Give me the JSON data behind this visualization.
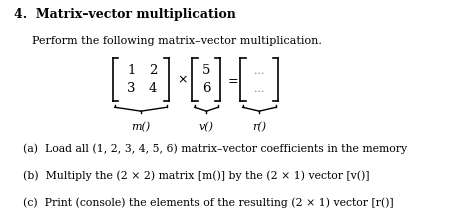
{
  "title": "4.  Matrix–vector multiplication",
  "subtitle": "Perform the following matrix–vector multiplication.",
  "matrix_label": "m()",
  "vec_label": "v()",
  "result_label": "r()",
  "item_a": "(a)  Load all (1, 2, 3, 4, 5, 6) matrix–vector coefficients in the memory",
  "item_b": "(b)  Multiply the (2 × 2) matrix [m()] by the (2 × 1) vector [v()]",
  "item_c": "(c)  Print (console) the elements of the resulting (2 × 1) vector [r()]",
  "bg_color": "#ffffff",
  "text_color": "#000000",
  "gray_color": "#888888"
}
